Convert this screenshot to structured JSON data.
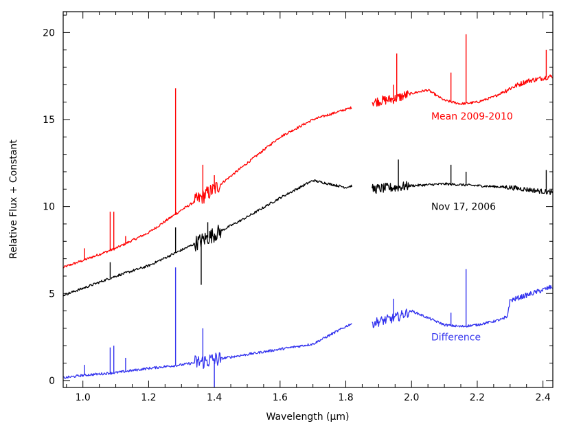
{
  "chart_data": {
    "type": "line",
    "xlabel": "Wavelength (μm)",
    "ylabel": "Relative Flux + Constant",
    "xlim": [
      0.94,
      2.43
    ],
    "ylim": [
      -0.4,
      21.2
    ],
    "x_ticks": [
      1.0,
      1.2,
      1.4,
      1.6,
      1.8,
      2.0,
      2.2,
      2.4
    ],
    "x_tick_labels": [
      "1.0",
      "1.2",
      "1.4",
      "1.6",
      "1.8",
      "2.0",
      "2.2",
      "2.4"
    ],
    "y_ticks": [
      0,
      5,
      10,
      15,
      20
    ],
    "y_tick_labels": [
      "0",
      "5",
      "10",
      "15",
      "20"
    ],
    "gap": [
      1.82,
      1.88
    ],
    "grid": false,
    "series": [
      {
        "name": "Mean 2009-2010",
        "color": "#ff0000",
        "label_x": 2.06,
        "label_y": 15.0,
        "x": [
          0.94,
          1.0,
          1.1,
          1.2,
          1.3,
          1.4,
          1.5,
          1.6,
          1.7,
          1.82,
          1.88,
          1.95,
          2.0,
          2.05,
          2.1,
          2.15,
          2.2,
          2.25,
          2.3,
          2.35,
          2.43
        ],
        "y": [
          6.5,
          6.9,
          7.6,
          8.5,
          9.8,
          11.0,
          12.5,
          14.0,
          15.0,
          15.7,
          16.0,
          16.2,
          16.5,
          16.7,
          16.1,
          15.9,
          16.0,
          16.3,
          16.8,
          17.2,
          17.5
        ],
        "spikes": [
          [
            1.005,
            7.6
          ],
          [
            1.083,
            9.7
          ],
          [
            1.094,
            9.7
          ],
          [
            1.13,
            8.3
          ],
          [
            1.282,
            16.8
          ],
          [
            1.365,
            12.4
          ],
          [
            1.4,
            11.8
          ],
          [
            1.945,
            17.0
          ],
          [
            1.955,
            18.8
          ],
          [
            2.12,
            17.7
          ],
          [
            2.166,
            19.9
          ],
          [
            2.41,
            19.0
          ]
        ]
      },
      {
        "name": "Nov 17, 2006",
        "color": "#000000",
        "label_x": 2.06,
        "label_y": 9.8,
        "x": [
          0.94,
          1.0,
          1.1,
          1.2,
          1.3,
          1.4,
          1.5,
          1.6,
          1.7,
          1.8,
          1.82,
          1.88,
          1.95,
          2.0,
          2.1,
          2.2,
          2.3,
          2.43
        ],
        "y": [
          4.9,
          5.3,
          6.0,
          6.6,
          7.5,
          8.4,
          9.4,
          10.5,
          11.5,
          11.1,
          11.2,
          11.0,
          11.1,
          11.2,
          11.3,
          11.2,
          11.1,
          10.8
        ],
        "spikes": [
          [
            1.083,
            6.8
          ],
          [
            1.282,
            8.8
          ],
          [
            1.36,
            5.5
          ],
          [
            1.38,
            9.1
          ],
          [
            1.96,
            12.7
          ],
          [
            2.12,
            12.4
          ],
          [
            2.166,
            12.0
          ],
          [
            2.41,
            12.1
          ]
        ]
      },
      {
        "name": "Difference",
        "color": "#3333ee",
        "label_x": 2.06,
        "label_y": 2.3,
        "x": [
          0.94,
          1.0,
          1.1,
          1.2,
          1.3,
          1.4,
          1.5,
          1.6,
          1.7,
          1.75,
          1.82,
          1.88,
          1.95,
          2.0,
          2.05,
          2.1,
          2.15,
          2.2,
          2.25,
          2.29,
          2.3,
          2.35,
          2.43
        ],
        "y": [
          0.15,
          0.3,
          0.45,
          0.7,
          0.9,
          1.2,
          1.5,
          1.8,
          2.1,
          2.6,
          3.3,
          3.3,
          3.6,
          4.0,
          3.6,
          3.2,
          3.1,
          3.2,
          3.4,
          3.6,
          4.6,
          4.9,
          5.4
        ],
        "spikes": [
          [
            1.005,
            0.9
          ],
          [
            1.083,
            1.9
          ],
          [
            1.094,
            2.0
          ],
          [
            1.13,
            1.3
          ],
          [
            1.282,
            6.5
          ],
          [
            1.365,
            3.0
          ],
          [
            1.4,
            -0.4
          ],
          [
            1.945,
            4.7
          ],
          [
            2.12,
            3.9
          ],
          [
            2.166,
            6.4
          ]
        ]
      }
    ]
  }
}
